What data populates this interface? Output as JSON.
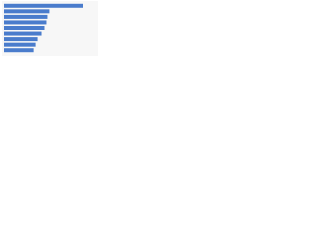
{
  "chart_data": {
    "type": "bar",
    "orientation": "horizontal",
    "categories": [
      null,
      null,
      null,
      null,
      null,
      null,
      null,
      null,
      null
    ],
    "values": [
      80,
      46,
      44,
      43,
      41,
      38,
      34,
      32,
      30
    ],
    "color": "#4a7ccc"
  }
}
